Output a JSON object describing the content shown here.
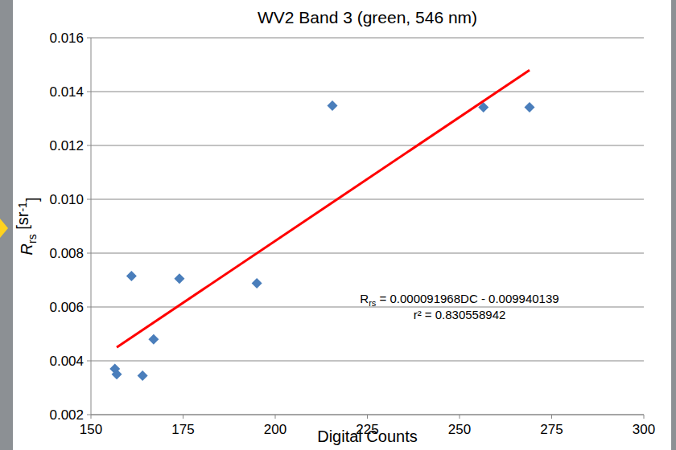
{
  "chart_data": {
    "type": "scatter",
    "title": "WV2 Band 3 (green, 546 nm)",
    "xlabel": "Digital Counts",
    "ylabel": [
      "R",
      "rs",
      " [sr",
      "-1",
      "]"
    ],
    "x": [
      156.5,
      157,
      161,
      164,
      167,
      174,
      195,
      215.5,
      256.5,
      269
    ],
    "values": [
      0.0037,
      0.0035,
      0.00715,
      0.00345,
      0.0048,
      0.00705,
      0.00688,
      0.01348,
      0.01342,
      0.01342
    ],
    "color": "#4a7ebb",
    "marker": "diamond",
    "trendline": {
      "x": [
        157,
        269
      ],
      "values": [
        0.0045,
        0.0148
      ],
      "color": "#ff0000",
      "line_style": "solid"
    },
    "equation": [
      "R",
      "rs",
      " = 0.000091968DC - 0.009940139"
    ],
    "r_squared": "r² = 0.830558942",
    "xlim": [
      150,
      300
    ],
    "xticks": [
      150,
      175,
      200,
      225,
      250,
      275,
      300
    ],
    "ylim": [
      0.002,
      0.016
    ],
    "yticks": [
      0.002,
      0.004,
      0.006,
      0.008,
      {
        "value": 0.01,
        "label": "0.010"
      },
      0.012,
      0.014,
      0.016
    ],
    "grid": true
  }
}
